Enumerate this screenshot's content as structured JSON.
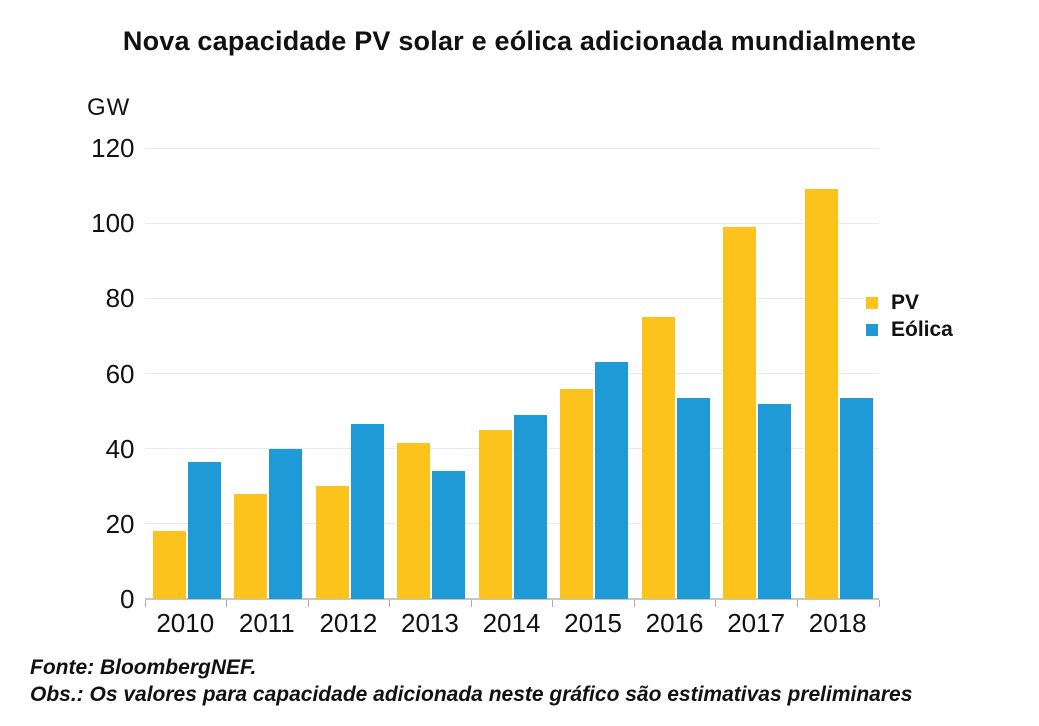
{
  "title": "Nova capacidade PV solar e eólica adicionada mundialmente",
  "y_axis": {
    "unit_label": "GW"
  },
  "chart_data": {
    "type": "bar",
    "title": "Nova capacidade PV solar e eólica adicionada mundialmente",
    "categories": [
      "2010",
      "2011",
      "2012",
      "2013",
      "2014",
      "2015",
      "2016",
      "2017",
      "2018"
    ],
    "series": [
      {
        "name": "PV",
        "color": "#FBC31B",
        "values": [
          18,
          28,
          30,
          41.5,
          45,
          56,
          75,
          99,
          109
        ]
      },
      {
        "name": "Eólica",
        "color": "#1E9BD7",
        "values": [
          36.5,
          40,
          46.5,
          34,
          49,
          63,
          53.5,
          52,
          53.5
        ]
      }
    ],
    "xlabel": "",
    "ylabel": "GW",
    "ylim": [
      0,
      120
    ],
    "yticks": [
      0,
      20,
      40,
      60,
      80,
      100,
      120
    ],
    "grid": true,
    "legend_position": "right"
  },
  "footer": {
    "source": "Fonte: BloombergNEF.",
    "note": "Obs.: Os valores para capacidade adicionada neste gráfico são estimativas preliminares"
  }
}
